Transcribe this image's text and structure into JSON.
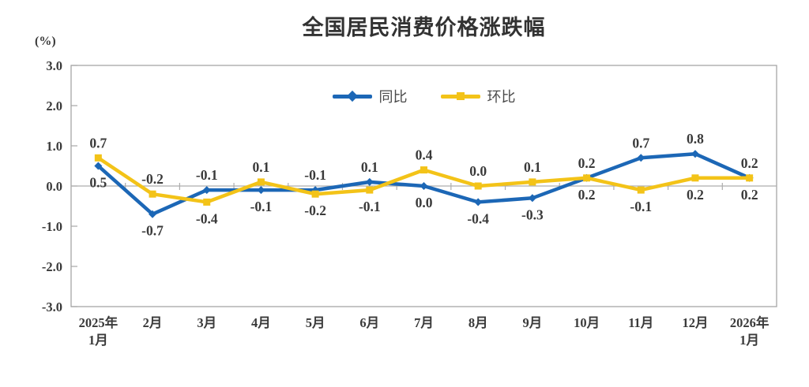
{
  "chart_data": {
    "type": "line",
    "title": "全国居民消费价格涨跌幅",
    "unit_label": "(%)",
    "categories": [
      "2025年\n1月",
      "2月",
      "3月",
      "4月",
      "5月",
      "6月",
      "7月",
      "8月",
      "9月",
      "10月",
      "11月",
      "12月",
      "2026年\n1月"
    ],
    "series": [
      {
        "name": "同比",
        "color": "#1c67b6",
        "marker": "diamond",
        "values": [
          0.5,
          -0.7,
          -0.1,
          -0.1,
          -0.1,
          0.1,
          0.0,
          -0.4,
          -0.3,
          0.2,
          0.7,
          0.8,
          0.2
        ]
      },
      {
        "name": "环比",
        "color": "#f3c318",
        "marker": "square",
        "values": [
          0.7,
          -0.2,
          -0.4,
          0.1,
          -0.2,
          -0.1,
          0.4,
          0.0,
          0.1,
          0.2,
          -0.1,
          0.2,
          0.2
        ]
      }
    ],
    "ylim": [
      -3,
      3
    ],
    "ytick_step": 1,
    "ytick_labels": [
      "3.0",
      "2.0",
      "1.0",
      "0.0",
      "-1.0",
      "-2.0",
      "-3.0"
    ],
    "grid": "zero-line-only",
    "legend_position": "top-center",
    "axis_color": "#a6a6a6",
    "zero_line_color": "#adadad",
    "label_color": "#3a3a3a",
    "background": "#ffffff"
  }
}
